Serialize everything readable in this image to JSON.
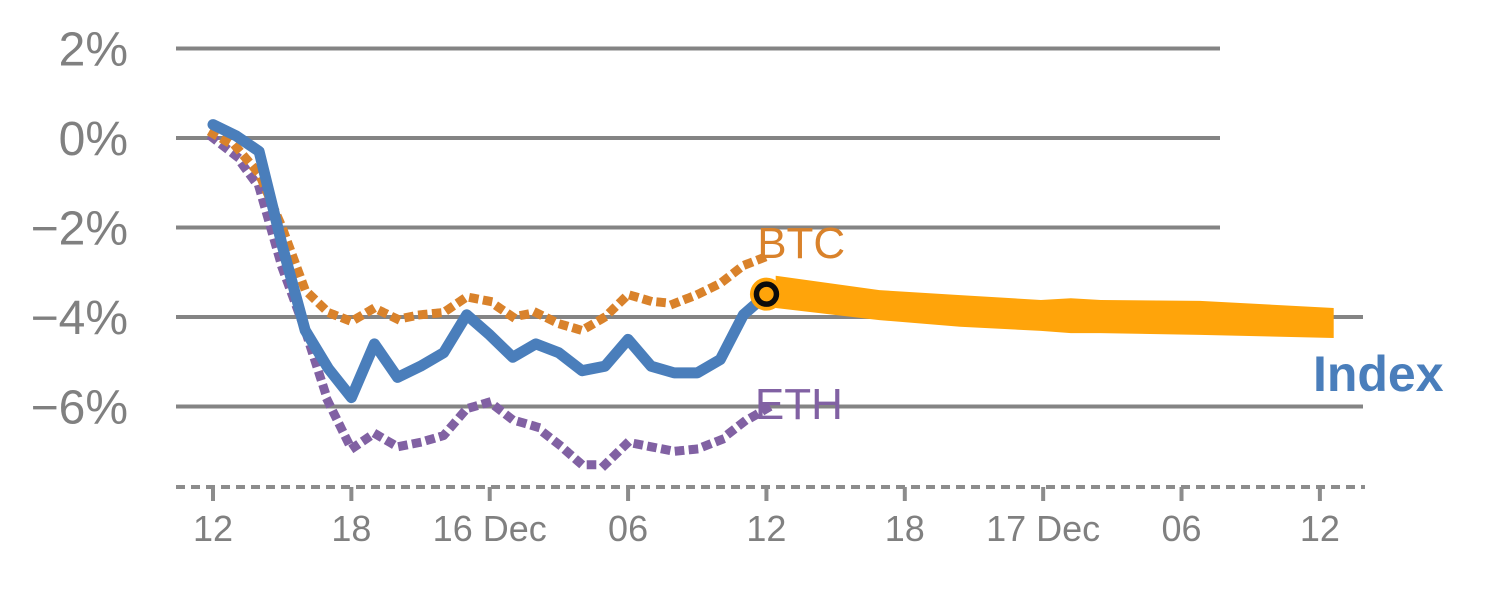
{
  "chart_data": {
    "type": "line",
    "description": "Intraday percentage change of BTC, ETH and a crypto Index over two days, with an orange projection band for the Index continuing forward from the last observation",
    "x_axis": {
      "unit": "hours",
      "tick_hours": [
        0,
        6,
        12,
        18,
        24,
        30,
        36,
        42,
        48
      ],
      "tick_labels": [
        "12",
        "18",
        "16 Dec",
        "06",
        "12",
        "18",
        "17 Dec",
        "06",
        "12"
      ]
    },
    "y_axis": {
      "tick_values": [
        2,
        0,
        -2,
        -4,
        -6
      ],
      "tick_labels": [
        "2%",
        "0%",
        "−2%",
        "−4%",
        "−6%"
      ],
      "ylim": [
        -7.9,
        2.6
      ],
      "grid": true
    },
    "series": [
      {
        "name": "eth",
        "label": "ETH",
        "style": "dotted",
        "color": "#8161a3",
        "label_pos": {
          "hour": 23.5,
          "value": -6.28
        },
        "hours": [
          0,
          1,
          2,
          3,
          4,
          5,
          6,
          7,
          8,
          9,
          10,
          11,
          12,
          13,
          14,
          15,
          16,
          17,
          18,
          19,
          20,
          21,
          22,
          23,
          24
        ],
        "values": [
          0.0,
          -0.4,
          -1.1,
          -2.9,
          -4.3,
          -5.9,
          -6.95,
          -6.6,
          -6.9,
          -6.8,
          -6.65,
          -6.05,
          -5.9,
          -6.3,
          -6.45,
          -6.85,
          -7.3,
          -7.3,
          -6.8,
          -6.9,
          -7.0,
          -6.95,
          -6.75,
          -6.35,
          -6.05
        ]
      },
      {
        "name": "btc",
        "label": "BTC",
        "style": "dotted",
        "color": "#d9822b",
        "label_pos": {
          "hour": 23.6,
          "value": -2.68
        },
        "hours": [
          0,
          1,
          2,
          3,
          4,
          5,
          6,
          7,
          8,
          9,
          10,
          11,
          12,
          13,
          14,
          15,
          16,
          17,
          18,
          19,
          20,
          21,
          22,
          23,
          24
        ],
        "values": [
          0.1,
          -0.2,
          -0.8,
          -2.0,
          -3.4,
          -3.9,
          -4.1,
          -3.8,
          -4.05,
          -3.95,
          -3.9,
          -3.55,
          -3.65,
          -4.0,
          -3.9,
          -4.15,
          -4.3,
          -4.0,
          -3.5,
          -3.65,
          -3.7,
          -3.5,
          -3.25,
          -2.85,
          -2.65
        ]
      },
      {
        "name": "index",
        "label": "Index",
        "style": "solid",
        "color": "#4a7ebb",
        "label_pos": {
          "hour": 47.7,
          "value": -5.65
        },
        "label_bold": true,
        "hours": [
          0,
          1,
          2,
          3,
          4,
          5,
          6,
          7,
          8,
          9,
          10,
          11,
          12,
          13,
          14,
          15,
          16,
          17,
          18,
          19,
          20,
          21,
          22,
          23,
          24
        ],
        "values": [
          0.3,
          0.05,
          -0.3,
          -2.4,
          -4.3,
          -5.15,
          -5.8,
          -4.6,
          -5.35,
          -5.1,
          -4.8,
          -3.95,
          -4.4,
          -4.9,
          -4.6,
          -4.8,
          -5.2,
          -5.1,
          -4.5,
          -5.1,
          -5.25,
          -5.25,
          -4.95,
          -3.95,
          -3.5
        ]
      }
    ],
    "projection_band": {
      "name": "index-projection",
      "color": "#ffa40a",
      "hours": [
        24.4,
        28.9,
        32.4,
        35.9,
        37.2,
        38.5,
        42.8,
        48.6
      ],
      "top": [
        -3.08,
        -3.4,
        -3.51,
        -3.62,
        -3.58,
        -3.62,
        -3.64,
        -3.8
      ],
      "bottom": [
        -3.8,
        -4.07,
        -4.22,
        -4.31,
        -4.36,
        -4.36,
        -4.4,
        -4.47
      ]
    },
    "marker": {
      "name": "current-value-marker",
      "hour": 24,
      "value": -3.49,
      "fill": "#ffa40a",
      "ring_color": "#0b0b0b"
    },
    "colors": {
      "gridline": "#848484",
      "axis": "#8c8c8c",
      "tick_text": "#808080"
    }
  }
}
